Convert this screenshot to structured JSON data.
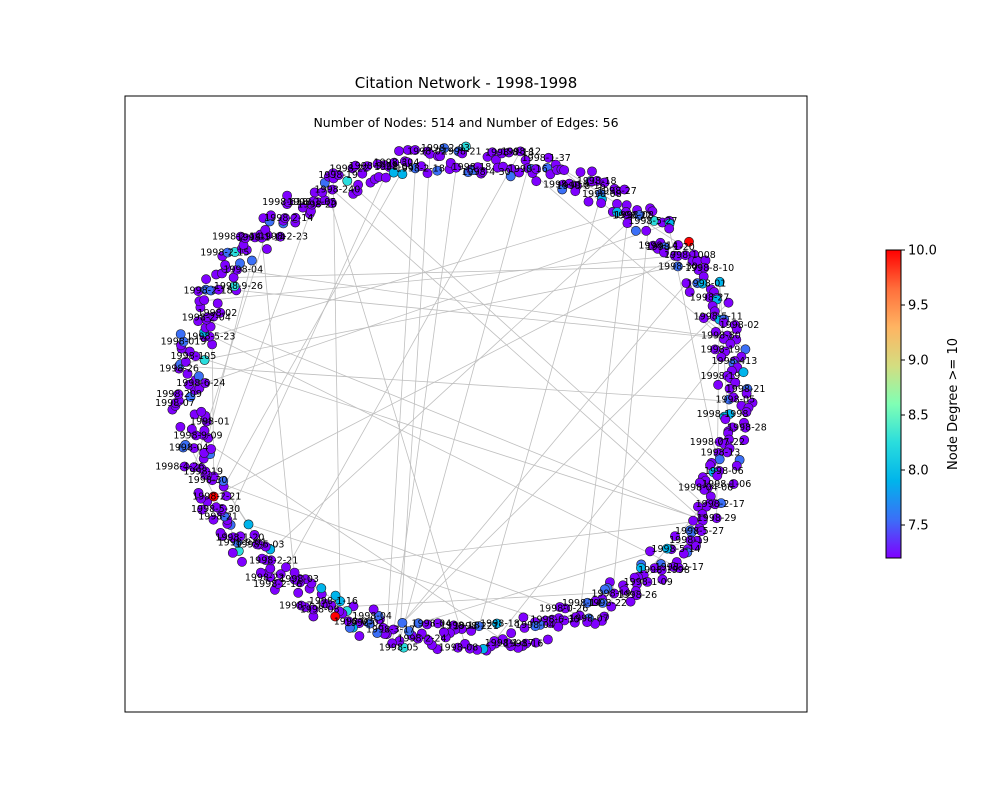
{
  "title": "Citation Network - 1998-1998",
  "subtitle": "Number of Nodes: 514 and Number of Edges: 56",
  "network": {
    "node_count": 514,
    "edge_count": 56,
    "layout": "circular ring",
    "node_colormap": [
      "#7f00ff",
      "#3b6ff7",
      "#00b4eb",
      "#2adddd",
      "#80ffb4",
      "#d4dd80",
      "#ffb462",
      "#ff6e3b",
      "#ff0000"
    ],
    "node_border_color": "#1a1a1a",
    "edge_color": "#bfbfbf",
    "visible_labels": [
      "1998-05",
      "1998-1998",
      "1998-28",
      "1998-07-22",
      "1998-13",
      "1998-06",
      "1998-1-06",
      "1998-04-06",
      "1998-2-17",
      "1998-29",
      "1998-5-27",
      "1998-19",
      "1998-5-14",
      "1998-2-17",
      "1998-1998",
      "1998-1-09",
      "1998-26",
      "1998-19",
      "1998-22",
      "1998-14",
      "1998-07",
      "1998-0-26",
      "1998-6-30",
      "1998-04",
      "1998-16",
      "1998-1-17",
      "1998-18",
      "1998-221",
      "1998-08",
      "1998-18",
      "1998-04",
      "1998-2-24",
      "1998-05",
      "1998-3-17",
      "1998-04",
      "1998-02",
      "1998-03",
      "1998-1-16",
      "1998-08",
      "1998-7-10",
      "1998-03",
      "1998-2-16",
      "1998-22",
      "1998-2-21",
      "1998-5-03",
      "1998-9-01",
      "1998-1-20",
      "1998-21",
      "1998-5-30",
      "1998-2-21",
      "1998-30",
      "1998-19",
      "1998-4-26",
      "1998-04",
      "1998-9-09",
      "1998-01",
      "1998-07",
      "1998-209",
      "1998-6-24",
      "1998-26",
      "1998-105",
      "1998-019",
      "1998-5-23",
      "1998-2-04",
      "1998-02",
      "1998-2-18",
      "1998-9-26",
      "1998-04",
      "1998-2-15",
      "1998-2-14",
      "1998-1-14",
      "1998-2-23",
      "1998-2-14",
      "1998-618",
      "1998-20",
      "1998-1-05",
      "1998-240",
      "1998-19",
      "1998-22",
      "1998-9-21",
      "1998-06",
      "1998-304",
      "1998-2-18",
      "1998-02",
      "1998-2-03",
      "1998-21",
      "1998-18",
      "1998-4-30",
      "1998-8-18",
      "1998-12",
      "1998-16",
      "1998-1-37",
      "1998-016",
      "1998-8-16",
      "1998-18",
      "1998-08",
      "1998-27",
      "1998-22",
      "1998-08",
      "1998-5-27",
      "1998-14",
      "1998-1-20",
      "1998-1008",
      "1998-30",
      "1998-8-10",
      "1998-01",
      "1998-27",
      "1998-5-11",
      "1998-02",
      "1998-80",
      "1998-19",
      "1998-413",
      "1998-19",
      "1998-21"
    ]
  },
  "colorbar": {
    "label": "Node Degree >= 10",
    "min": 7.2,
    "max": 10.0,
    "ticks": [
      "7.5",
      "8.0",
      "8.5",
      "9.0",
      "9.5",
      "10.0"
    ],
    "tick_values": [
      7.5,
      8.0,
      8.5,
      9.0,
      9.5,
      10.0
    ],
    "colors": [
      "#7f00ff",
      "#3b6ff7",
      "#00b4eb",
      "#2adddd",
      "#80ffb4",
      "#d4dd80",
      "#ffb462",
      "#ff6e3b",
      "#ff0000"
    ]
  }
}
